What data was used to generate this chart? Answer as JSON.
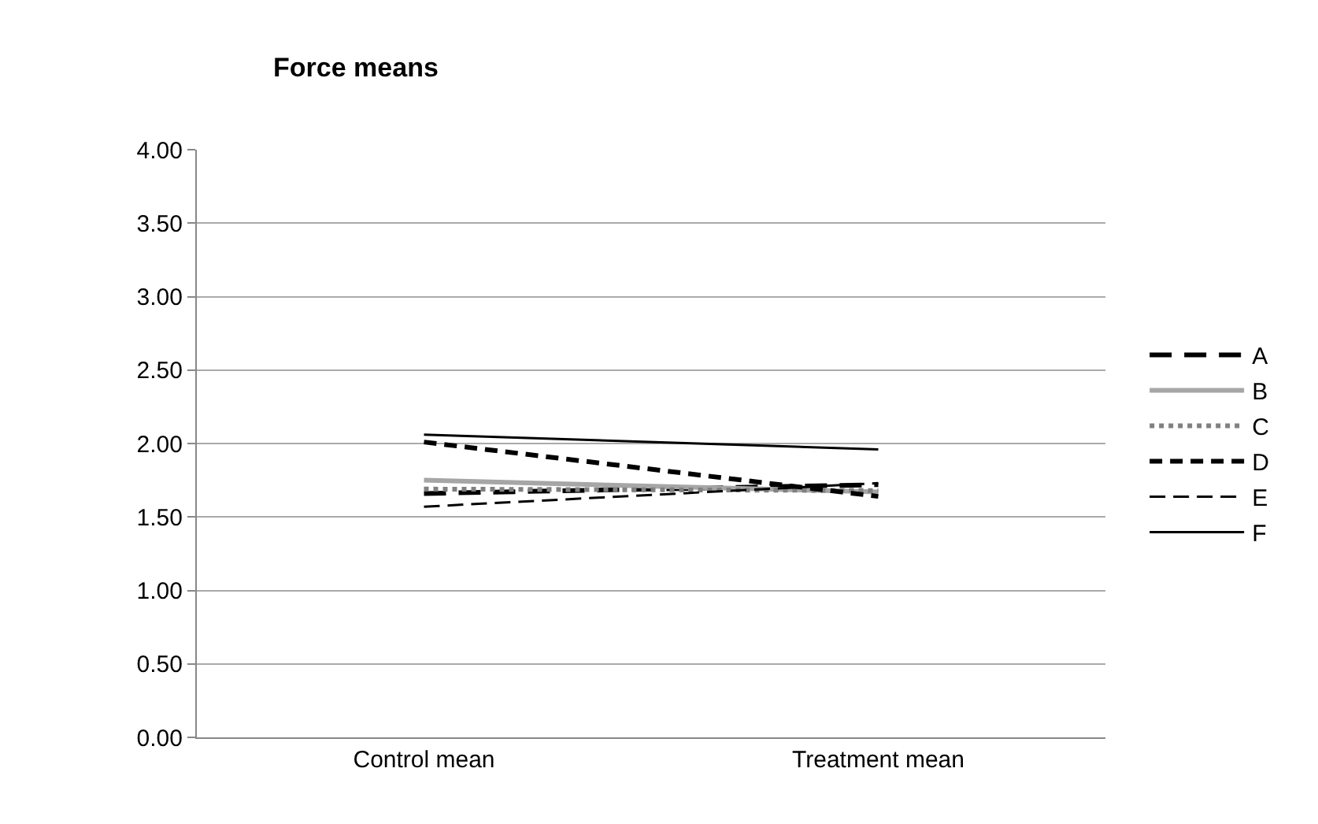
{
  "chart_data": {
    "type": "line",
    "title": "Force means",
    "categories": [
      "Control mean",
      "Treatment mean"
    ],
    "series": [
      {
        "name": "A",
        "color": "#000000",
        "values": [
          1.66,
          1.72
        ],
        "line_style": "dashed"
      },
      {
        "name": "B",
        "color": "#a6a6a6",
        "values": [
          1.75,
          1.67
        ],
        "line_style": "solid"
      },
      {
        "name": "C",
        "color": "#808080",
        "values": [
          1.69,
          1.68
        ],
        "line_style": "dotted"
      },
      {
        "name": "D",
        "color": "#000000",
        "values": [
          2.01,
          1.64
        ],
        "line_style": "dashed"
      },
      {
        "name": "E",
        "color": "#000000",
        "values": [
          1.57,
          1.73
        ],
        "line_style": "dashed"
      },
      {
        "name": "F",
        "color": "#000000",
        "values": [
          2.06,
          1.96
        ],
        "line_style": "solid"
      }
    ],
    "ylim": [
      0,
      4
    ],
    "yticks": [
      {
        "value": 0,
        "label": "0.00"
      },
      {
        "value": 0.5,
        "label": "0.50"
      },
      {
        "value": 1,
        "label": "1.00"
      },
      {
        "value": 1.5,
        "label": "1.50"
      },
      {
        "value": 2,
        "label": "2.00"
      },
      {
        "value": 2.5,
        "label": "2.50"
      },
      {
        "value": 3,
        "label": "3.00"
      },
      {
        "value": 3.5,
        "label": "3.50"
      },
      {
        "value": 4,
        "label": "4.00"
      }
    ],
    "grid": "y",
    "legend": "right",
    "marker": "none"
  }
}
